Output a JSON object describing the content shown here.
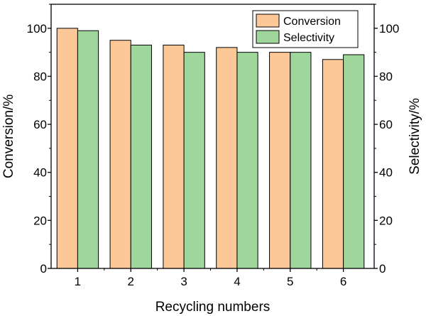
{
  "chart_data": {
    "type": "bar",
    "categories": [
      "1",
      "2",
      "3",
      "4",
      "5",
      "6"
    ],
    "series": [
      {
        "name": "Conversion",
        "values": [
          100,
          95,
          93,
          92,
          90,
          87
        ],
        "color": "#fdc898"
      },
      {
        "name": "Selectivity",
        "values": [
          99,
          93,
          90,
          90,
          90,
          89
        ],
        "color": "#9ed69b"
      }
    ],
    "xlabel": "Recycling numbers",
    "ylabel": "Conversion/%",
    "y2label": "Selectivity/%",
    "ylim": [
      0,
      110
    ],
    "y2lim": [
      0,
      110
    ],
    "yticks": [
      0,
      20,
      40,
      60,
      80,
      100
    ],
    "y2ticks": [
      0,
      20,
      40,
      60,
      80,
      100
    ],
    "grid": false,
    "legend": "top-right"
  }
}
